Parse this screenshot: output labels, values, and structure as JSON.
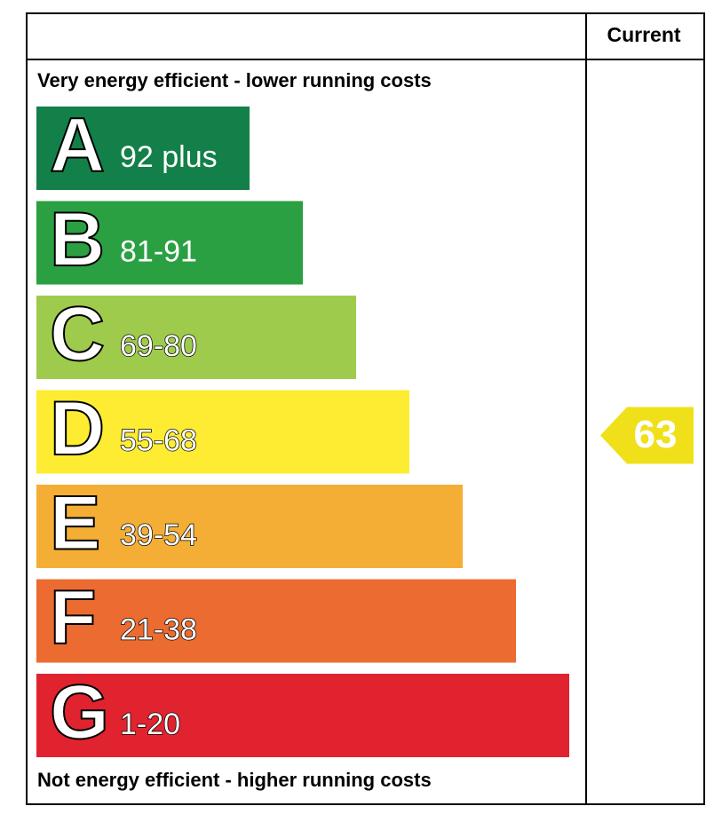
{
  "header": {
    "column": "Current"
  },
  "top_note": "Very energy efficient - lower running costs",
  "bottom_note": "Not energy efficient - higher running costs",
  "bands": [
    {
      "letter": "A",
      "range": "92 plus",
      "color": "#13804a"
    },
    {
      "letter": "B",
      "range": "81-91",
      "color": "#2ba042"
    },
    {
      "letter": "C",
      "range": "69-80",
      "color": "#9fcb4c"
    },
    {
      "letter": "D",
      "range": "55-68",
      "color": "#fdec31"
    },
    {
      "letter": "E",
      "range": "39-54",
      "color": "#f5ae35"
    },
    {
      "letter": "F",
      "range": "21-38",
      "color": "#eb6b30"
    },
    {
      "letter": "G",
      "range": "1-20",
      "color": "#e1232f"
    }
  ],
  "current": 63
}
